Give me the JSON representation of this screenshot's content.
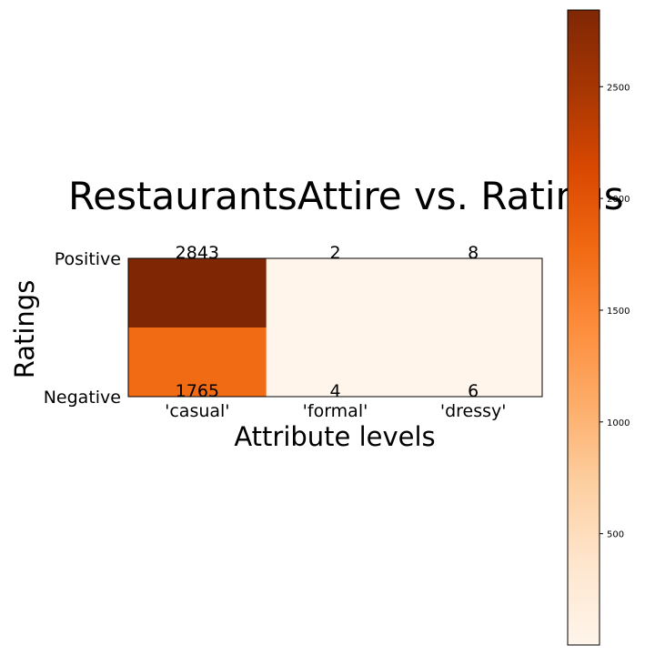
{
  "chart_data": {
    "type": "heatmap",
    "title": "RestaurantsAttire vs. Ratings",
    "xlabel": "Attribute levels",
    "ylabel": "Ratings",
    "x_categories": [
      "'casual'",
      "'formal'",
      "'dressy'"
    ],
    "y_categories": [
      "Positive",
      "Negative"
    ],
    "values": [
      [
        2843,
        2,
        8
      ],
      [
        1765,
        4,
        6
      ]
    ],
    "colormap": "Oranges",
    "colorbar": {
      "min": 2,
      "max": 2843,
      "ticks": [
        500,
        1000,
        1500,
        2000,
        2500
      ],
      "tick_labels": [
        "500",
        "1000",
        "1500",
        "2000",
        "2500"
      ]
    },
    "grid": false
  }
}
